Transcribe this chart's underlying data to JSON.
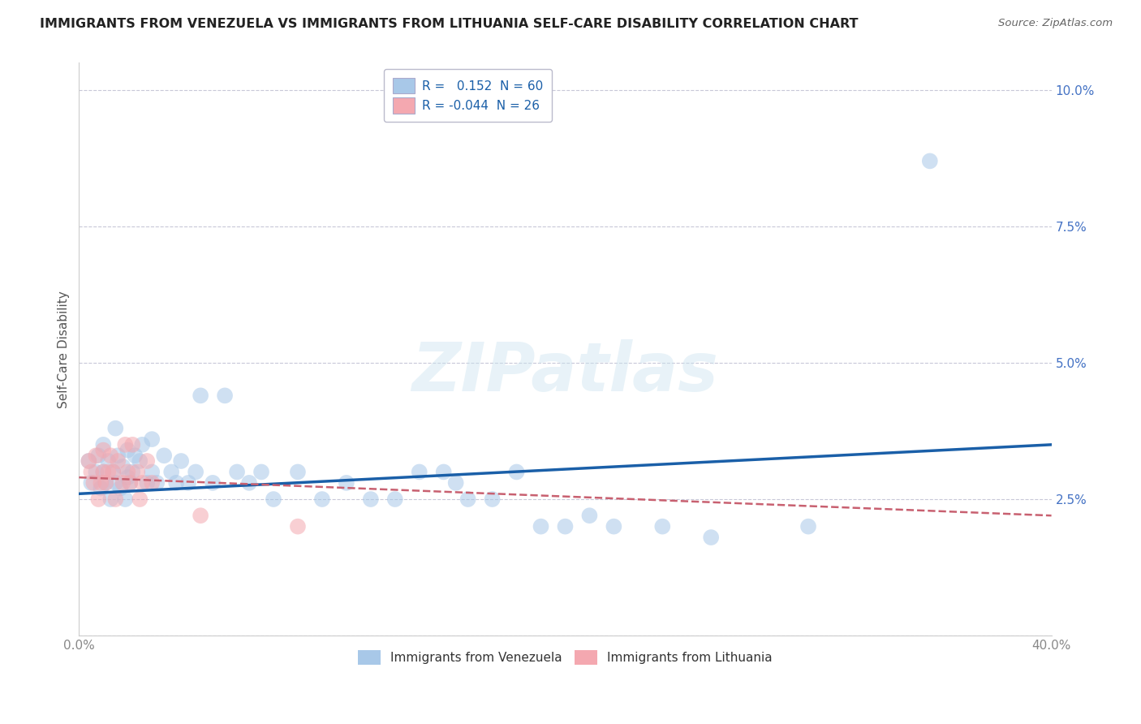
{
  "title": "IMMIGRANTS FROM VENEZUELA VS IMMIGRANTS FROM LITHUANIA SELF-CARE DISABILITY CORRELATION CHART",
  "source": "Source: ZipAtlas.com",
  "ylabel": "Self-Care Disability",
  "legend_blue_r": "0.152",
  "legend_blue_n": "60",
  "legend_pink_r": "-0.044",
  "legend_pink_n": "26",
  "legend_blue_label": "Immigrants from Venezuela",
  "legend_pink_label": "Immigrants from Lithuania",
  "blue_color": "#a8c8e8",
  "pink_color": "#f4a8b0",
  "blue_line_color": "#1a5fa8",
  "pink_line_color": "#c86070",
  "background_color": "#ffffff",
  "grid_color": "#c8c8d8",
  "title_color": "#222222",
  "tick_color": "#4472c4",
  "xtick_color": "#888888",
  "xlim": [
    0.0,
    0.4
  ],
  "ylim": [
    0.0,
    0.105
  ],
  "venezuela_x": [
    0.004,
    0.005,
    0.007,
    0.008,
    0.009,
    0.01,
    0.01,
    0.011,
    0.012,
    0.013,
    0.014,
    0.015,
    0.015,
    0.016,
    0.017,
    0.018,
    0.019,
    0.02,
    0.02,
    0.021,
    0.022,
    0.023,
    0.025,
    0.026,
    0.028,
    0.03,
    0.03,
    0.032,
    0.035,
    0.038,
    0.04,
    0.042,
    0.045,
    0.048,
    0.05,
    0.055,
    0.06,
    0.065,
    0.07,
    0.075,
    0.08,
    0.09,
    0.1,
    0.11,
    0.12,
    0.13,
    0.14,
    0.15,
    0.155,
    0.16,
    0.17,
    0.18,
    0.19,
    0.2,
    0.21,
    0.22,
    0.24,
    0.26,
    0.3,
    0.35
  ],
  "venezuela_y": [
    0.032,
    0.028,
    0.03,
    0.033,
    0.027,
    0.03,
    0.035,
    0.028,
    0.032,
    0.025,
    0.03,
    0.038,
    0.028,
    0.033,
    0.027,
    0.031,
    0.025,
    0.034,
    0.029,
    0.028,
    0.03,
    0.033,
    0.032,
    0.035,
    0.028,
    0.03,
    0.036,
    0.028,
    0.033,
    0.03,
    0.028,
    0.032,
    0.028,
    0.03,
    0.044,
    0.028,
    0.044,
    0.03,
    0.028,
    0.03,
    0.025,
    0.03,
    0.025,
    0.028,
    0.025,
    0.025,
    0.03,
    0.03,
    0.028,
    0.025,
    0.025,
    0.03,
    0.02,
    0.02,
    0.022,
    0.02,
    0.02,
    0.018,
    0.02,
    0.087
  ],
  "lithuania_x": [
    0.004,
    0.005,
    0.006,
    0.007,
    0.008,
    0.009,
    0.01,
    0.01,
    0.011,
    0.012,
    0.013,
    0.014,
    0.015,
    0.016,
    0.018,
    0.019,
    0.02,
    0.021,
    0.022,
    0.024,
    0.025,
    0.026,
    0.028,
    0.03,
    0.05,
    0.09
  ],
  "lithuania_y": [
    0.032,
    0.03,
    0.028,
    0.033,
    0.025,
    0.028,
    0.03,
    0.034,
    0.028,
    0.03,
    0.033,
    0.03,
    0.025,
    0.032,
    0.028,
    0.035,
    0.03,
    0.028,
    0.035,
    0.03,
    0.025,
    0.028,
    0.032,
    0.028,
    0.022,
    0.02
  ],
  "blue_trend_x": [
    0.0,
    0.4
  ],
  "blue_trend_y": [
    0.026,
    0.035
  ],
  "pink_trend_x": [
    0.0,
    0.4
  ],
  "pink_trend_y": [
    0.029,
    0.022
  ],
  "marker_size": 200,
  "marker_alpha": 0.55,
  "title_fontsize": 11.5,
  "tick_fontsize": 11,
  "source_fontsize": 9.5,
  "legend_fontsize": 11,
  "ylabel_fontsize": 11
}
